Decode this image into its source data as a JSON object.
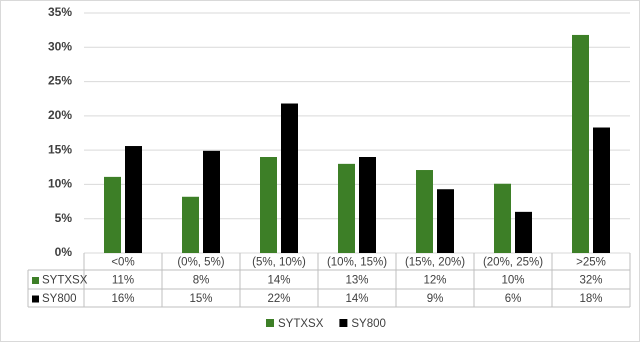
{
  "chart_data": {
    "type": "bar",
    "categories": [
      "<0%",
      "(0%, 5%)",
      "(5%, 10%)",
      "(10%, 15%)",
      "(15%, 20%)",
      "(20%, 25%)",
      ">25%"
    ],
    "series": [
      {
        "name": "SYTXSX",
        "color": "#3d7f27",
        "values": [
          11.1,
          8.2,
          14,
          13,
          12.1,
          10.1,
          31.8
        ],
        "value_labels": [
          "11%",
          "8%",
          "14%",
          "13%",
          "12%",
          "10%",
          "32%"
        ]
      },
      {
        "name": "SY800",
        "color": "#000000",
        "values": [
          15.6,
          14.9,
          21.8,
          14,
          9.3,
          6,
          18.3
        ],
        "value_labels": [
          "16%",
          "15%",
          "22%",
          "14%",
          "9%",
          "6%",
          "18%"
        ]
      }
    ],
    "ylim": [
      0,
      35
    ],
    "yticks": [
      {
        "value": 0,
        "label": "0%"
      },
      {
        "value": 5,
        "label": "5%"
      },
      {
        "value": 10,
        "label": "10%"
      },
      {
        "value": 15,
        "label": "15%"
      },
      {
        "value": 20,
        "label": "20%"
      },
      {
        "value": 25,
        "label": "25%"
      },
      {
        "value": 30,
        "label": "30%"
      },
      {
        "value": 35,
        "label": "35%"
      }
    ],
    "grid": true,
    "legend": "bottom"
  }
}
